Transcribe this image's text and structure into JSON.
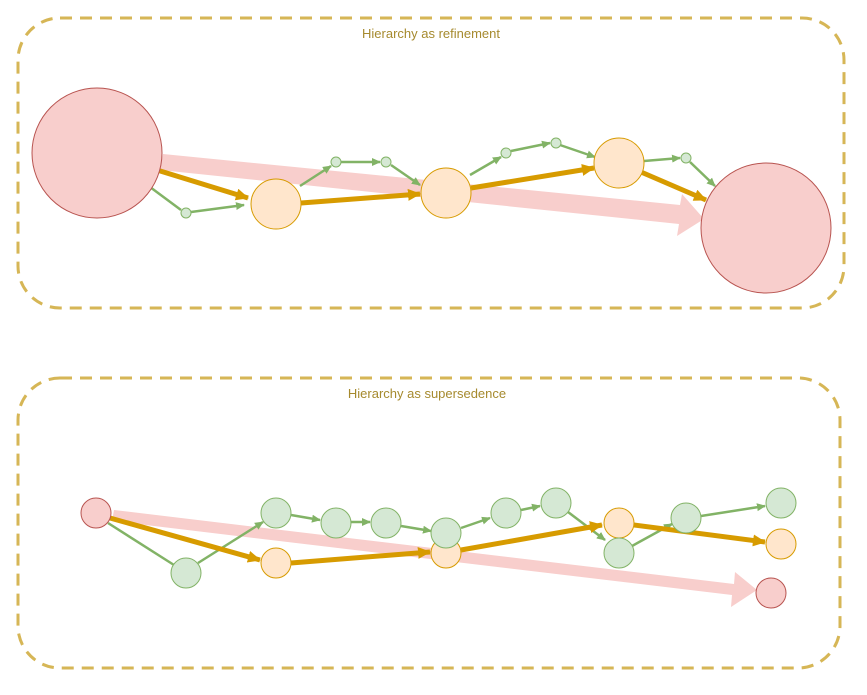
{
  "colors": {
    "frame": "#d6b656",
    "title_text": "#a68a2e",
    "high_fill": "#f8cecc",
    "high_stroke": "#b85450",
    "high_arrow": "#f8cecc",
    "mid_fill": "#ffe6cc",
    "mid_stroke": "#d79b00",
    "mid_arrow": "#d79b00",
    "low_fill": "#d5e8d4",
    "low_stroke": "#82b366",
    "low_arrow": "#82b366"
  },
  "panels": [
    {
      "id": "refinement",
      "title": "Hierarchy as refinement"
    },
    {
      "id": "supersedence",
      "title": "Hierarchy as supersedence"
    }
  ]
}
